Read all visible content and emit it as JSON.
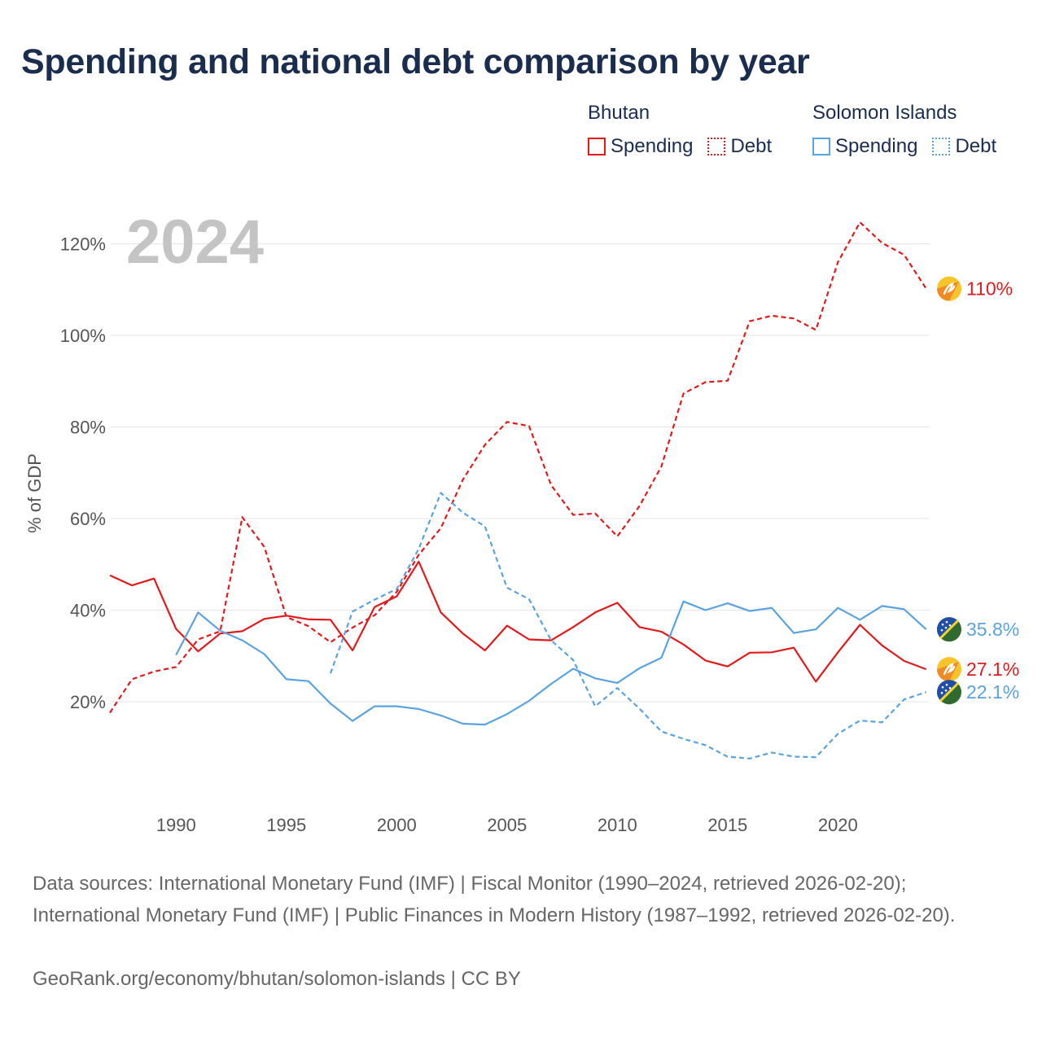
{
  "title": "Spending and national debt comparison by year",
  "legend": {
    "groups": [
      {
        "name": "Bhutan",
        "spending_label": "Spending",
        "debt_label": "Debt",
        "color": "#e31a1c"
      },
      {
        "name": "Solomon Islands",
        "spending_label": "Spending",
        "debt_label": "Debt",
        "color": "#5aa3e0"
      }
    ]
  },
  "footer": {
    "sources": "Data sources: International Monetary Fund (IMF) | Fiscal Monitor (1990–2024, retrieved 2026-02-20); International Monetary Fund (IMF) | Public Finances in Modern History (1987–1992, retrieved 2026-02-20).",
    "credit": "GeoRank.org/economy/bhutan/solomon-islands | CC BY"
  },
  "chart_data": {
    "type": "line",
    "year_label": "2024",
    "ylabel": "% of GDP",
    "xlabel": "",
    "xlim": [
      1987,
      2024
    ],
    "ylim": [
      0,
      130
    ],
    "grid": true,
    "y_ticks": [
      20,
      40,
      60,
      80,
      100,
      120
    ],
    "y_tick_labels": [
      "20%",
      "40%",
      "60%",
      "80%",
      "100%",
      "120%"
    ],
    "x_ticks": [
      1990,
      1995,
      2000,
      2005,
      2010,
      2015,
      2020
    ],
    "x_tick_labels": [
      "1990",
      "1995",
      "2000",
      "2005",
      "2010",
      "2015",
      "2020"
    ],
    "series": [
      {
        "name": "Bhutan Debt",
        "country": "Bhutan",
        "measure": "Debt",
        "color": "#e31a1c",
        "dashed": true,
        "end_label": "110%",
        "x": [
          1987,
          1988,
          1989,
          1990,
          1991,
          1992,
          1993,
          1994,
          1995,
          1996,
          1997,
          1998,
          1999,
          2000,
          2001,
          2002,
          2003,
          2004,
          2005,
          2006,
          2007,
          2008,
          2009,
          2010,
          2011,
          2012,
          2013,
          2014,
          2015,
          2016,
          2017,
          2018,
          2019,
          2020,
          2021,
          2022,
          2023,
          2024
        ],
        "values": [
          17.6,
          24.9,
          26.6,
          27.6,
          33.6,
          35.4,
          60.3,
          53.8,
          38.5,
          36.5,
          33.0,
          36.2,
          38.9,
          44.0,
          52.1,
          57.9,
          68.5,
          76.1,
          81.1,
          80.2,
          67.3,
          60.8,
          61.1,
          56.1,
          62.7,
          71.4,
          87.3,
          89.8,
          90.1,
          103.1,
          104.3,
          103.7,
          101.2,
          116.0,
          124.7,
          120.2,
          117.6,
          110.2
        ]
      },
      {
        "name": "Bhutan Spending",
        "country": "Bhutan",
        "measure": "Spending",
        "color": "#e31a1c",
        "dashed": false,
        "end_label": "27.1%",
        "x": [
          1987,
          1988,
          1989,
          1990,
          1991,
          1992,
          1993,
          1994,
          1995,
          1996,
          1997,
          1998,
          1999,
          2000,
          2001,
          2002,
          2003,
          2004,
          2005,
          2006,
          2007,
          2008,
          2009,
          2010,
          2011,
          2012,
          2013,
          2014,
          2015,
          2016,
          2017,
          2018,
          2019,
          2020,
          2021,
          2022,
          2023,
          2024
        ],
        "values": [
          47.6,
          45.4,
          46.9,
          35.9,
          31.0,
          34.9,
          35.4,
          38.1,
          38.8,
          38.0,
          37.9,
          31.2,
          40.7,
          43.0,
          50.6,
          39.5,
          34.9,
          31.2,
          36.6,
          33.6,
          33.4,
          36.3,
          39.5,
          41.6,
          36.3,
          35.3,
          32.5,
          29.0,
          27.7,
          30.7,
          30.8,
          31.8,
          24.4,
          30.8,
          36.8,
          32.3,
          28.9,
          27.1
        ]
      },
      {
        "name": "Solomon Islands Spending",
        "country": "Solomon Islands",
        "measure": "Spending",
        "color": "#5aa3e0",
        "dashed": false,
        "end_label": "35.8%",
        "x": [
          1990,
          1991,
          1992,
          1993,
          1994,
          1995,
          1996,
          1997,
          1998,
          1999,
          2000,
          2001,
          2002,
          2003,
          2004,
          2005,
          2006,
          2007,
          2008,
          2009,
          2010,
          2011,
          2012,
          2013,
          2014,
          2015,
          2016,
          2017,
          2018,
          2019,
          2020,
          2021,
          2022,
          2023,
          2024
        ],
        "values": [
          30.2,
          39.5,
          35.5,
          33.4,
          30.4,
          24.9,
          24.5,
          19.6,
          15.8,
          19.0,
          19.0,
          18.4,
          17.0,
          15.2,
          15.0,
          17.3,
          20.2,
          23.9,
          27.2,
          25.1,
          24.1,
          27.3,
          29.6,
          41.9,
          40.0,
          41.5,
          39.8,
          40.5,
          35.0,
          35.8,
          40.5,
          37.9,
          40.9,
          40.2,
          35.8
        ]
      },
      {
        "name": "Solomon Islands Debt",
        "country": "Solomon Islands",
        "measure": "Debt",
        "color": "#5aa3e0",
        "dashed": true,
        "end_label": "22.1%",
        "x": [
          1997,
          1998,
          1999,
          2000,
          2001,
          2002,
          2003,
          2004,
          2005,
          2006,
          2007,
          2008,
          2009,
          2010,
          2011,
          2012,
          2013,
          2014,
          2015,
          2016,
          2017,
          2018,
          2019,
          2020,
          2021,
          2022,
          2023,
          2024
        ],
        "values": [
          26.2,
          39.7,
          42.3,
          44.6,
          53.4,
          65.6,
          61.3,
          58.3,
          44.9,
          42.4,
          33.4,
          29.1,
          19.0,
          23.0,
          18.5,
          13.5,
          11.9,
          10.5,
          8.0,
          7.6,
          8.9,
          8.0,
          7.9,
          13.0,
          15.9,
          15.5,
          20.5,
          22.1
        ]
      }
    ],
    "end_labels": [
      {
        "series": "Bhutan Debt",
        "text": "110%",
        "value": 110.2,
        "color": "#e31a1c",
        "flag": "bhutan"
      },
      {
        "series": "Solomon Islands Spending",
        "text": "35.8%",
        "value": 35.8,
        "color": "#5aa3e0",
        "flag": "solomon-islands"
      },
      {
        "series": "Bhutan Spending",
        "text": "27.1%",
        "value": 27.1,
        "color": "#e31a1c",
        "flag": "bhutan"
      },
      {
        "series": "Solomon Islands Debt",
        "text": "22.1%",
        "value": 22.1,
        "color": "#5aa3e0",
        "flag": "solomon-islands"
      }
    ]
  }
}
